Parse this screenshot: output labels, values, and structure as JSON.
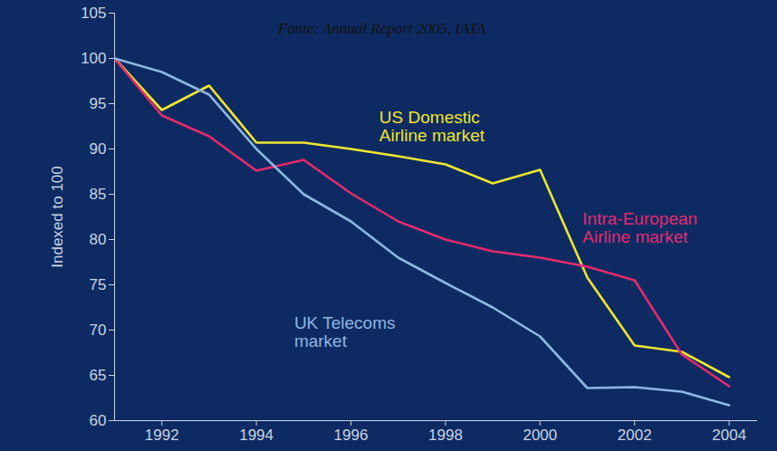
{
  "chart_data": {
    "type": "line",
    "title": "Fonte: Annual Report 2005, IATA",
    "y_label": "Indexed to 100",
    "x": [
      1991,
      1992,
      1993,
      1994,
      1995,
      1996,
      1997,
      1998,
      1999,
      2000,
      2001,
      2002,
      2003,
      2004
    ],
    "series": [
      {
        "name": "US Domestic Airline market",
        "color": "#f0e62e",
        "values": [
          100,
          94.3,
          97,
          90.7,
          90.7,
          90,
          89.2,
          88.3,
          86.2,
          87.7,
          75.8,
          68.3,
          67.6,
          64.8
        ]
      },
      {
        "name": "Intra-European Airline market",
        "color": "#e52a6f",
        "values": [
          100,
          93.7,
          91.4,
          87.6,
          88.8,
          85.1,
          82,
          80,
          78.7,
          78,
          77,
          75.5,
          67.3,
          63.8
        ]
      },
      {
        "name": "UK Telecoms market",
        "color": "#8db6e2",
        "values": [
          100,
          98.5,
          96,
          90,
          85,
          82,
          78,
          75.2,
          72.5,
          69.3,
          63.6,
          63.7,
          63.2,
          61.7
        ]
      }
    ],
    "xlim": [
      1991,
      2004.6
    ],
    "xticks": [
      1992,
      1994,
      1996,
      1998,
      2000,
      2002,
      2004
    ],
    "ylim": [
      60,
      105
    ],
    "yticks": [
      60,
      65,
      70,
      75,
      80,
      85,
      90,
      95,
      100,
      105
    ],
    "grid": false
  }
}
